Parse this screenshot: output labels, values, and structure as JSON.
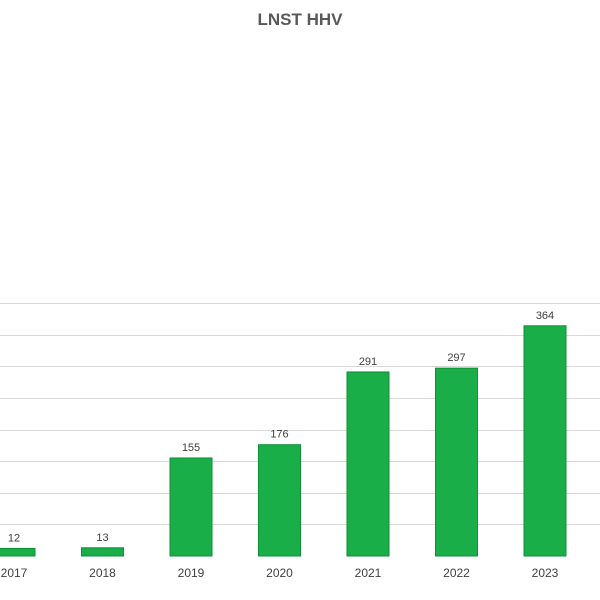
{
  "chart_data": {
    "type": "bar",
    "title": "LNST HHV",
    "categories": [
      "2017",
      "2018",
      "2019",
      "2020",
      "2021",
      "2022",
      "2023"
    ],
    "values": [
      12,
      13,
      155,
      176,
      291,
      297,
      364
    ],
    "ylim": [
      0,
      400
    ],
    "grid": true,
    "colors": {
      "bar": "#1aae48",
      "bar_edge": "#0f8f38",
      "grid": "#d9d9d9"
    }
  }
}
